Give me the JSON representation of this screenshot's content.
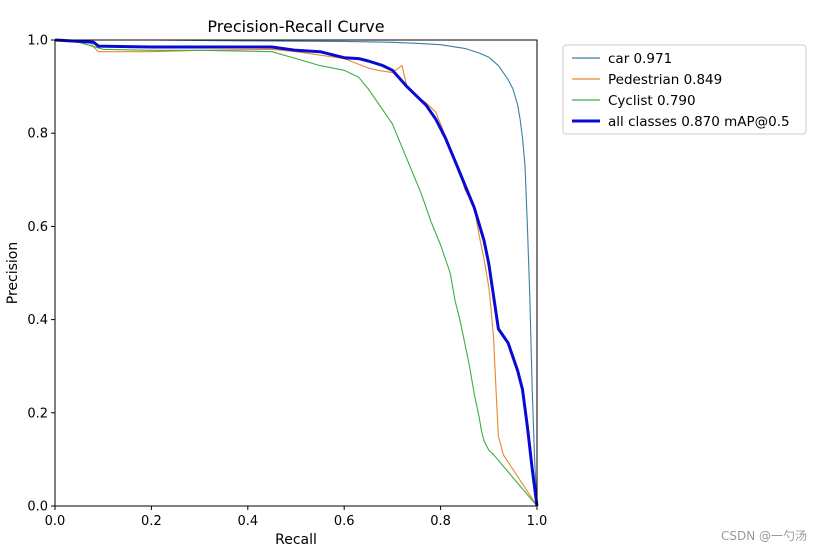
{
  "chart_data": {
    "type": "line",
    "title": "Precision-Recall Curve",
    "xlabel": "Recall",
    "ylabel": "Precision",
    "xlim": [
      0,
      1
    ],
    "ylim": [
      0,
      1
    ],
    "xticks": [
      "0.0",
      "0.2",
      "0.4",
      "0.6",
      "0.8",
      "1.0"
    ],
    "yticks": [
      "0.0",
      "0.2",
      "0.4",
      "0.6",
      "0.8",
      "1.0"
    ],
    "grid": false,
    "legend_position": "outside-top-right",
    "series": [
      {
        "name": "car 0.971",
        "color": "#3a7fa3",
        "x": [
          0,
          0.2,
          0.4,
          0.6,
          0.7,
          0.75,
          0.8,
          0.85,
          0.88,
          0.9,
          0.92,
          0.94,
          0.95,
          0.96,
          0.965,
          0.97,
          0.975,
          0.98,
          0.985,
          0.99,
          0.995,
          1.0
        ],
        "y": [
          1.0,
          1.0,
          0.998,
          0.997,
          0.995,
          0.993,
          0.99,
          0.982,
          0.972,
          0.963,
          0.945,
          0.915,
          0.895,
          0.86,
          0.83,
          0.79,
          0.73,
          0.6,
          0.45,
          0.25,
          0.1,
          0.0
        ]
      },
      {
        "name": "Pedestrian 0.849",
        "color": "#e8872e",
        "x": [
          0,
          0.07,
          0.08,
          0.09,
          0.2,
          0.3,
          0.45,
          0.5,
          0.6,
          0.65,
          0.67,
          0.7,
          0.72,
          0.73,
          0.75,
          0.77,
          0.79,
          0.8,
          0.82,
          0.84,
          0.85,
          0.87,
          0.88,
          0.89,
          0.9,
          0.905,
          0.91,
          0.915,
          0.92,
          0.93,
          1.0
        ],
        "y": [
          1.0,
          1.0,
          0.985,
          0.975,
          0.975,
          0.978,
          0.98,
          0.975,
          0.96,
          0.94,
          0.935,
          0.93,
          0.945,
          0.9,
          0.88,
          0.865,
          0.845,
          0.82,
          0.765,
          0.72,
          0.68,
          0.64,
          0.58,
          0.53,
          0.47,
          0.42,
          0.36,
          0.25,
          0.15,
          0.11,
          0.0
        ]
      },
      {
        "name": "Cyclist 0.790",
        "color": "#3fae3f",
        "x": [
          0,
          0.05,
          0.1,
          0.2,
          0.3,
          0.45,
          0.5,
          0.55,
          0.6,
          0.63,
          0.65,
          0.68,
          0.7,
          0.72,
          0.74,
          0.76,
          0.78,
          0.8,
          0.82,
          0.83,
          0.84,
          0.85,
          0.86,
          0.87,
          0.88,
          0.885,
          0.89,
          0.9,
          0.91,
          1.0
        ],
        "y": [
          1.0,
          0.995,
          0.98,
          0.978,
          0.978,
          0.975,
          0.96,
          0.945,
          0.935,
          0.92,
          0.895,
          0.85,
          0.82,
          0.77,
          0.72,
          0.67,
          0.61,
          0.56,
          0.5,
          0.44,
          0.4,
          0.35,
          0.3,
          0.24,
          0.19,
          0.16,
          0.14,
          0.12,
          0.11,
          0.0
        ]
      },
      {
        "name": "all classes 0.870 mAP@0.5",
        "color": "#0a0ad4",
        "x": [
          0,
          0.08,
          0.09,
          0.2,
          0.3,
          0.45,
          0.5,
          0.55,
          0.6,
          0.63,
          0.65,
          0.68,
          0.7,
          0.73,
          0.75,
          0.77,
          0.79,
          0.81,
          0.83,
          0.85,
          0.87,
          0.89,
          0.9,
          0.91,
          0.92,
          0.94,
          0.95,
          0.96,
          0.97,
          0.98,
          0.99,
          1.0
        ],
        "y": [
          1.0,
          0.995,
          0.987,
          0.985,
          0.985,
          0.985,
          0.978,
          0.975,
          0.962,
          0.96,
          0.955,
          0.945,
          0.935,
          0.9,
          0.88,
          0.86,
          0.83,
          0.79,
          0.74,
          0.69,
          0.64,
          0.57,
          0.52,
          0.45,
          0.38,
          0.35,
          0.32,
          0.29,
          0.25,
          0.17,
          0.08,
          0.0
        ]
      }
    ]
  },
  "watermark": "CSDN @一勺汤"
}
